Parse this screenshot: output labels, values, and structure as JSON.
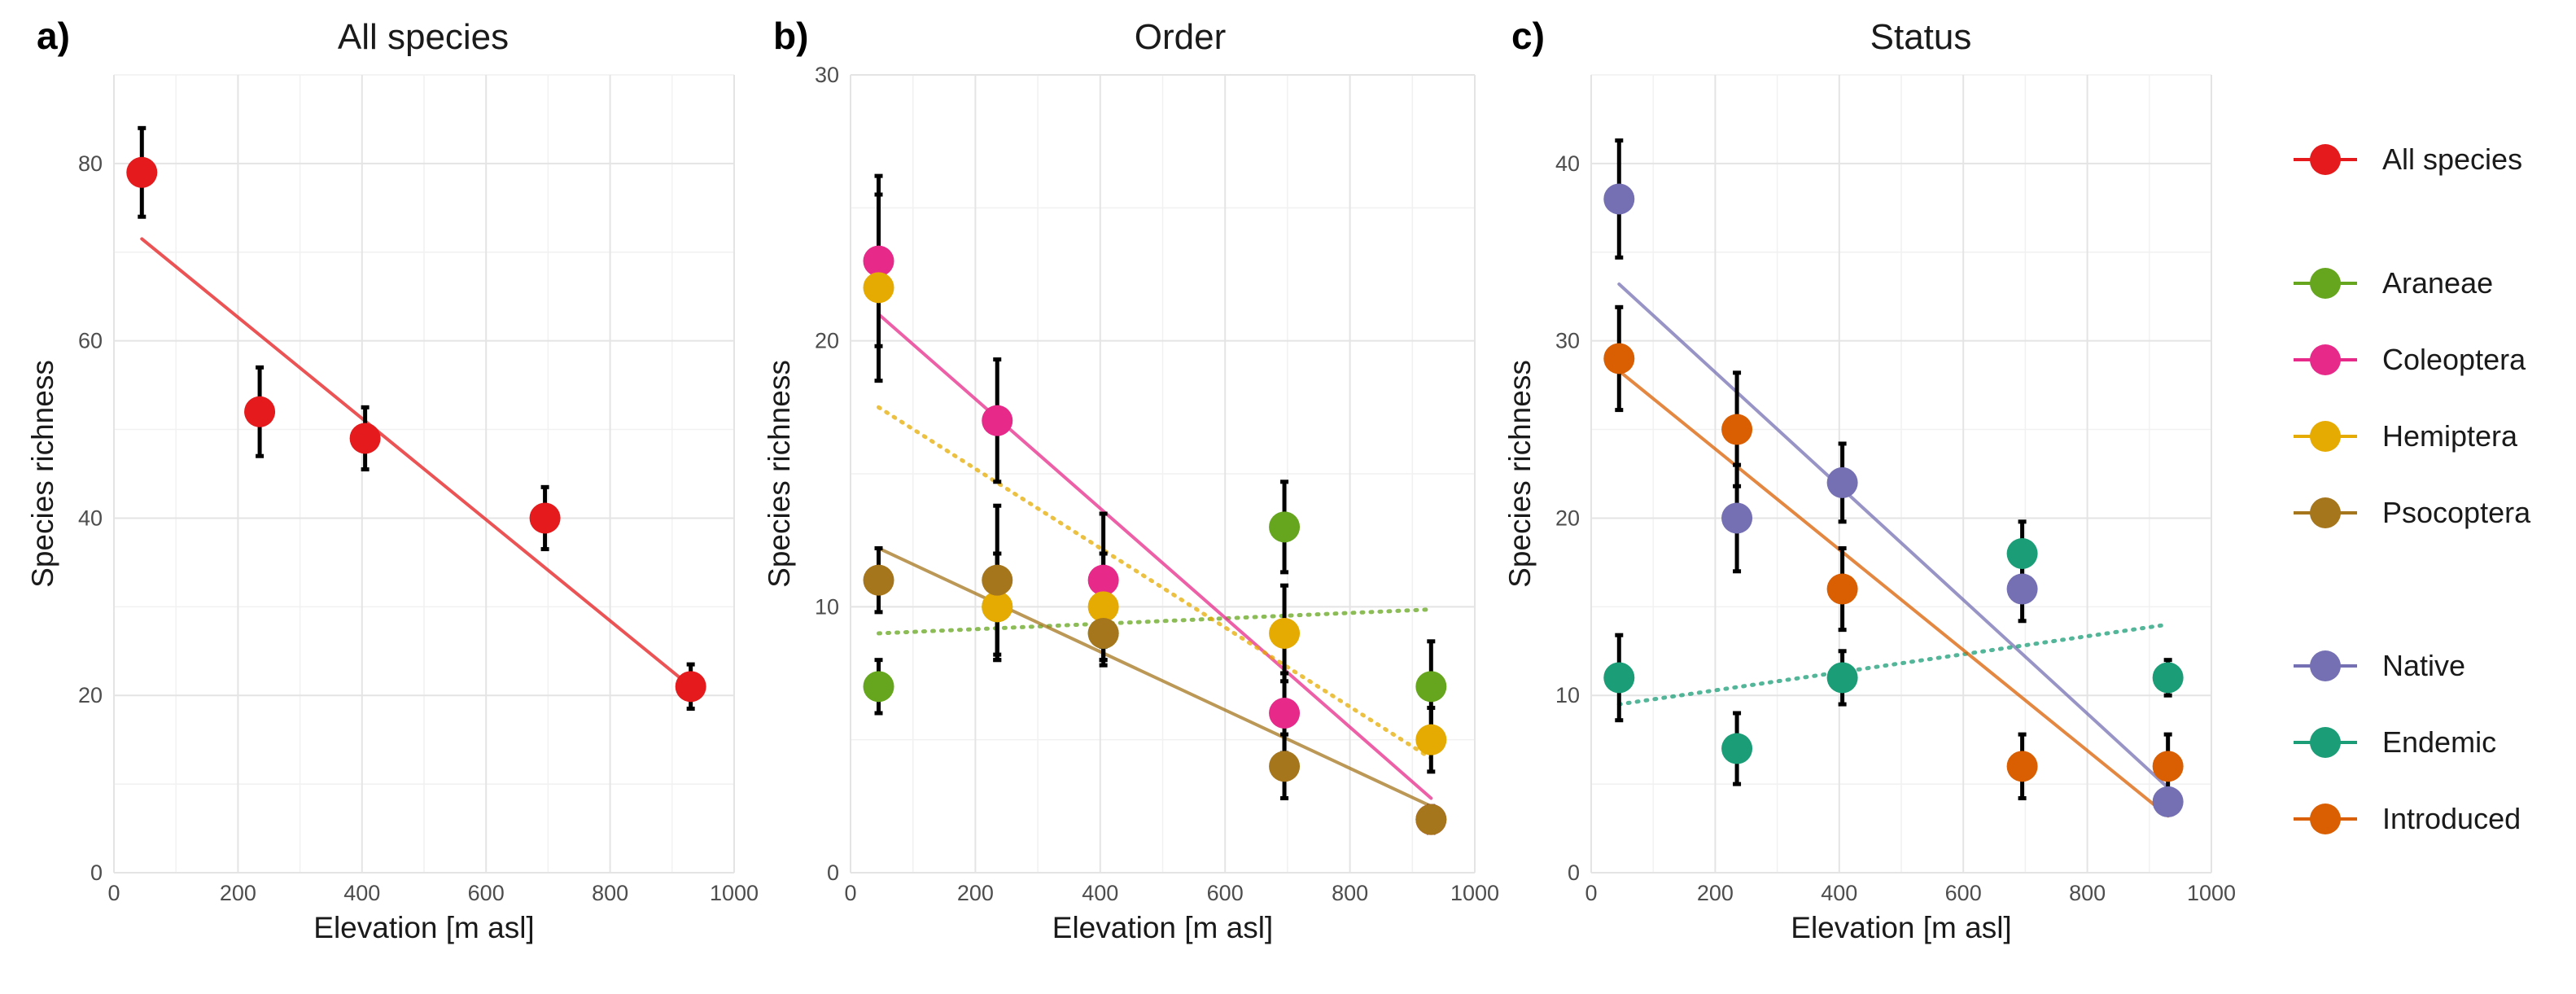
{
  "chart_data": [
    {
      "type": "scatter",
      "panel_letter": "a)",
      "title": "All species",
      "xlabel": "Elevation [m asl]",
      "ylabel": "Species richness",
      "xlim": [
        0,
        1000
      ],
      "ylim": [
        0,
        90
      ],
      "xticks": [
        "0",
        "200",
        "400",
        "600",
        "800",
        "1000"
      ],
      "yticks": [
        "0",
        "20",
        "40",
        "60",
        "80"
      ],
      "x": [
        45,
        235,
        405,
        695,
        930
      ],
      "series": [
        {
          "name": "All species",
          "color": "#e41a1c",
          "values": [
            79,
            52,
            49,
            40,
            21
          ],
          "err": [
            5,
            5,
            3.5,
            3.5,
            2.5
          ],
          "trend": {
            "start": [
              45,
              71.5
            ],
            "end": [
              930,
              21
            ],
            "style": "solid"
          }
        }
      ]
    },
    {
      "type": "scatter",
      "panel_letter": "b)",
      "title": "Order",
      "xlabel": "Elevation [m asl]",
      "ylabel": "Species richness",
      "xlim": [
        0,
        1000
      ],
      "ylim": [
        0,
        30
      ],
      "xticks": [
        "0",
        "200",
        "400",
        "600",
        "800",
        "1000"
      ],
      "yticks": [
        "0",
        "10",
        "20",
        "30"
      ],
      "x": [
        45,
        235,
        405,
        695,
        930
      ],
      "series": [
        {
          "name": "Araneae",
          "color": "#66a61e",
          "values": [
            7,
            10,
            9,
            13,
            7
          ],
          "err": [
            1,
            2,
            1,
            1.7,
            1.7
          ],
          "trend": {
            "start": [
              45,
              9
            ],
            "end": [
              930,
              9.9
            ],
            "style": "dotted"
          }
        },
        {
          "name": "Coleoptera",
          "color": "#e7298a",
          "values": [
            23,
            17,
            11,
            6,
            2
          ],
          "err": [
            3.2,
            2.3,
            2.5,
            1.5,
            0.5
          ],
          "trend": {
            "start": [
              45,
              21
            ],
            "end": [
              930,
              2.8
            ],
            "style": "solid"
          }
        },
        {
          "name": "Hemiptera",
          "color": "#e6ab02",
          "values": [
            22,
            10,
            10,
            9,
            5
          ],
          "err": [
            3.5,
            2,
            2,
            1.8,
            1.2
          ],
          "trend": {
            "start": [
              45,
              17.5
            ],
            "end": [
              930,
              4.3
            ],
            "style": "dotted"
          }
        },
        {
          "name": "Psocoptera",
          "color": "#a6761d",
          "values": [
            11,
            11,
            9,
            4,
            2
          ],
          "err": [
            1.2,
            2.8,
            1.2,
            1.2,
            0.5
          ],
          "trend": {
            "start": [
              45,
              12.2
            ],
            "end": [
              930,
              2.5
            ],
            "style": "solid"
          }
        }
      ]
    },
    {
      "type": "scatter",
      "panel_letter": "c)",
      "title": "Status",
      "xlabel": "Elevation [m asl]",
      "ylabel": "Species richness",
      "xlim": [
        0,
        1000
      ],
      "ylim": [
        0,
        45
      ],
      "xticks": [
        "0",
        "200",
        "400",
        "600",
        "800",
        "1000"
      ],
      "yticks": [
        "0",
        "10",
        "20",
        "30",
        "40"
      ],
      "x": [
        45,
        235,
        405,
        695,
        930
      ],
      "series": [
        {
          "name": "Native",
          "color": "#7570b3",
          "values": [
            38,
            20,
            22,
            16,
            4
          ],
          "err": [
            3.3,
            3,
            2.2,
            1.8,
            0.6
          ],
          "trend": {
            "start": [
              45,
              33.2
            ],
            "end": [
              930,
              4.8
            ],
            "style": "solid"
          }
        },
        {
          "name": "Endemic",
          "color": "#1b9e77",
          "values": [
            11,
            7,
            11,
            18,
            11
          ],
          "err": [
            2.4,
            2,
            1.5,
            1.8,
            1
          ],
          "trend": {
            "start": [
              45,
              9.5
            ],
            "end": [
              930,
              14
            ],
            "style": "dotted"
          }
        },
        {
          "name": "Introduced",
          "color": "#d95f02",
          "values": [
            29,
            25,
            16,
            6,
            6
          ],
          "err": [
            2.9,
            3.2,
            2.3,
            1.8,
            1.8
          ],
          "trend": {
            "start": [
              45,
              28.3
            ],
            "end": [
              930,
              3.2
            ],
            "style": "solid"
          }
        }
      ]
    }
  ],
  "legend": {
    "groups": [
      [
        {
          "name": "All species",
          "color": "#e41a1c"
        }
      ],
      [
        {
          "name": "Araneae",
          "color": "#66a61e"
        },
        {
          "name": "Coleoptera",
          "color": "#e7298a"
        },
        {
          "name": "Hemiptera",
          "color": "#e6ab02"
        },
        {
          "name": "Psocoptera",
          "color": "#a6761d"
        }
      ],
      [
        {
          "name": "Native",
          "color": "#7570b3"
        },
        {
          "name": "Endemic",
          "color": "#1b9e77"
        },
        {
          "name": "Introduced",
          "color": "#d95f02"
        }
      ]
    ]
  }
}
